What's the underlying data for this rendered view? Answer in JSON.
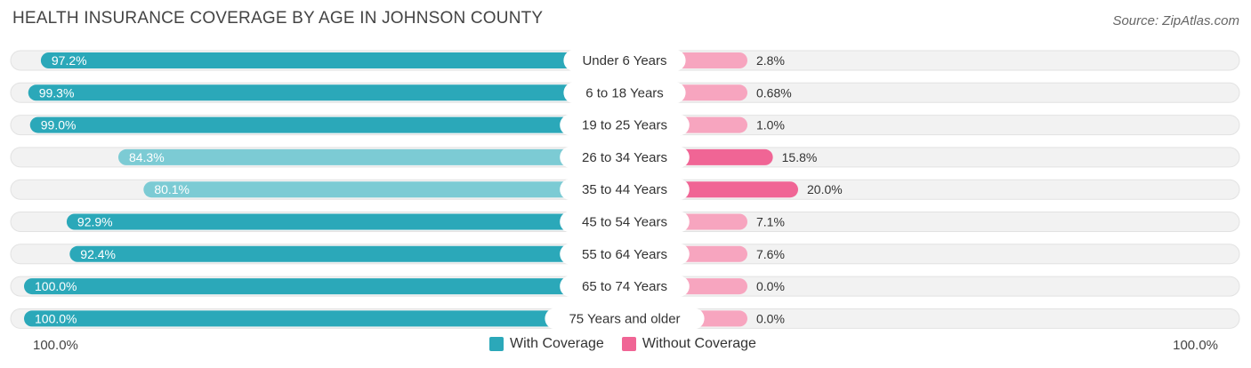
{
  "header": {
    "title": "HEALTH INSURANCE COVERAGE BY AGE IN JOHNSON COUNTY",
    "source": "Source: ZipAtlas.com"
  },
  "colors": {
    "with_strong": "#2ba8b9",
    "with_light": "#7ccbd4",
    "without_strong": "#f06595",
    "without_light": "#f7a5bf",
    "track": "#efefef"
  },
  "chart_data": {
    "type": "bar",
    "orientation": "diverging-horizontal",
    "title": "HEALTH INSURANCE COVERAGE BY AGE IN JOHNSON COUNTY",
    "categories": [
      "Under 6 Years",
      "6 to 18 Years",
      "19 to 25 Years",
      "26 to 34 Years",
      "35 to 44 Years",
      "45 to 54 Years",
      "55 to 64 Years",
      "65 to 74 Years",
      "75 Years and older"
    ],
    "series": [
      {
        "name": "With Coverage",
        "values": [
          97.2,
          99.3,
          99.0,
          84.3,
          80.1,
          92.9,
          92.4,
          100.0,
          100.0
        ],
        "labels": [
          "97.2%",
          "99.3%",
          "99.0%",
          "84.3%",
          "80.1%",
          "92.9%",
          "92.4%",
          "100.0%",
          "100.0%"
        ]
      },
      {
        "name": "Without Coverage",
        "values": [
          2.8,
          0.68,
          1.0,
          15.8,
          20.0,
          7.1,
          7.6,
          0.0,
          0.0
        ],
        "labels": [
          "2.8%",
          "0.68%",
          "1.0%",
          "15.8%",
          "20.0%",
          "7.1%",
          "7.6%",
          "0.0%",
          "0.0%"
        ]
      }
    ],
    "axis": {
      "left_label": "100.0%",
      "right_label": "100.0%"
    },
    "legend": [
      "With Coverage",
      "Without Coverage"
    ]
  }
}
